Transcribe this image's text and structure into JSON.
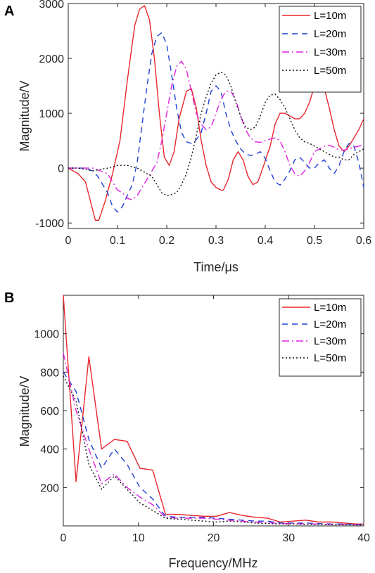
{
  "chart_data": [
    {
      "panel": "A",
      "type": "line",
      "xlabel": "Time/μs",
      "ylabel": "Magnitude/V",
      "xlim": [
        0,
        0.6
      ],
      "ylim": [
        -1100,
        3000
      ],
      "xticks": [
        "0",
        "0.1",
        "0.2",
        "0.3",
        "0.4",
        "0.5",
        "0.6"
      ],
      "yticks": [
        "-1000",
        "0",
        "1000",
        "2000",
        "3000"
      ],
      "legend": "top-right",
      "grid": false,
      "series": [
        {
          "name": "L=10m",
          "color": "#e8262d",
          "dash": "solid",
          "x": [
            0,
            0.02,
            0.035,
            0.045,
            0.055,
            0.062,
            0.075,
            0.09,
            0.105,
            0.12,
            0.135,
            0.145,
            0.155,
            0.165,
            0.175,
            0.185,
            0.195,
            0.205,
            0.215,
            0.225,
            0.24,
            0.25,
            0.26,
            0.27,
            0.28,
            0.29,
            0.3,
            0.31,
            0.315,
            0.325,
            0.335,
            0.345,
            0.355,
            0.365,
            0.375,
            0.385,
            0.395,
            0.41,
            0.42,
            0.43,
            0.44,
            0.45,
            0.46,
            0.47,
            0.48,
            0.49,
            0.5,
            0.51,
            0.52,
            0.53,
            0.54,
            0.55,
            0.56,
            0.57,
            0.58,
            0.59,
            0.6
          ],
          "y": [
            0,
            -100,
            -250,
            -600,
            -950,
            -950,
            -600,
            -100,
            500,
            1600,
            2600,
            2900,
            2960,
            2700,
            2000,
            1000,
            200,
            50,
            300,
            900,
            1400,
            1450,
            1100,
            500,
            50,
            -250,
            -350,
            -400,
            -400,
            -200,
            150,
            300,
            150,
            -150,
            -300,
            -250,
            0,
            400,
            800,
            1000,
            1000,
            950,
            900,
            900,
            1000,
            1200,
            1500,
            1550,
            1450,
            1100,
            700,
            400,
            300,
            400,
            550,
            700,
            900
          ]
        },
        {
          "name": "L=20m",
          "color": "#1f3fd6",
          "dash": "8,6",
          "x": [
            0,
            0.03,
            0.05,
            0.06,
            0.07,
            0.08,
            0.09,
            0.1,
            0.11,
            0.12,
            0.13,
            0.14,
            0.15,
            0.16,
            0.17,
            0.18,
            0.19,
            0.2,
            0.21,
            0.22,
            0.23,
            0.24,
            0.25,
            0.26,
            0.27,
            0.28,
            0.29,
            0.3,
            0.31,
            0.32,
            0.33,
            0.34,
            0.35,
            0.36,
            0.37,
            0.38,
            0.39,
            0.4,
            0.41,
            0.42,
            0.43,
            0.44,
            0.45,
            0.46,
            0.47,
            0.48,
            0.49,
            0.5,
            0.51,
            0.52,
            0.53,
            0.54,
            0.55,
            0.56,
            0.57,
            0.58,
            0.59,
            0.6
          ],
          "y": [
            0,
            0,
            -50,
            -150,
            -300,
            -450,
            -700,
            -800,
            -700,
            -500,
            -300,
            100,
            800,
            1500,
            2100,
            2400,
            2470,
            2250,
            1700,
            1100,
            650,
            480,
            450,
            520,
            650,
            1000,
            1400,
            1500,
            1400,
            1000,
            700,
            500,
            350,
            260,
            230,
            250,
            300,
            180,
            -50,
            -250,
            -310,
            -200,
            -50,
            150,
            200,
            100,
            0,
            0,
            100,
            150,
            0,
            -100,
            50,
            300,
            450,
            400,
            100,
            -350
          ]
        },
        {
          "name": "L=30m",
          "color": "#e020e0",
          "dash": "10,4,2,4",
          "x": [
            0,
            0.05,
            0.08,
            0.09,
            0.1,
            0.11,
            0.12,
            0.13,
            0.14,
            0.15,
            0.16,
            0.17,
            0.18,
            0.19,
            0.2,
            0.21,
            0.22,
            0.23,
            0.24,
            0.25,
            0.26,
            0.27,
            0.28,
            0.29,
            0.3,
            0.31,
            0.32,
            0.33,
            0.34,
            0.35,
            0.36,
            0.37,
            0.38,
            0.39,
            0.4,
            0.41,
            0.42,
            0.43,
            0.44,
            0.45,
            0.46,
            0.47,
            0.48,
            0.49,
            0.5,
            0.51,
            0.52,
            0.53,
            0.54,
            0.55,
            0.56,
            0.57,
            0.58,
            0.59,
            0.6
          ],
          "y": [
            0,
            0,
            -100,
            -250,
            -400,
            -450,
            -550,
            -580,
            -500,
            -350,
            -200,
            -50,
            100,
            500,
            1000,
            1500,
            1850,
            1950,
            1800,
            1400,
            1000,
            800,
            700,
            750,
            1000,
            1250,
            1400,
            1400,
            1250,
            950,
            700,
            550,
            480,
            470,
            500,
            530,
            550,
            500,
            300,
            50,
            -100,
            -150,
            -50,
            100,
            300,
            350,
            400,
            420,
            380,
            330,
            330,
            350,
            380,
            400,
            420
          ]
        },
        {
          "name": "L=50m",
          "color": "#111111",
          "dash": "2,3",
          "x": [
            0,
            0.02,
            0.05,
            0.08,
            0.1,
            0.12,
            0.14,
            0.15,
            0.16,
            0.17,
            0.18,
            0.19,
            0.2,
            0.21,
            0.22,
            0.23,
            0.24,
            0.25,
            0.26,
            0.27,
            0.28,
            0.29,
            0.3,
            0.31,
            0.32,
            0.33,
            0.34,
            0.35,
            0.36,
            0.37,
            0.38,
            0.39,
            0.4,
            0.41,
            0.42,
            0.43,
            0.44,
            0.45,
            0.46,
            0.47,
            0.48,
            0.49,
            0.5,
            0.51,
            0.52,
            0.53,
            0.54,
            0.55,
            0.56,
            0.57,
            0.58,
            0.59,
            0.6
          ],
          "y": [
            0,
            0,
            -50,
            0,
            50,
            50,
            0,
            -50,
            -100,
            -150,
            -300,
            -450,
            -500,
            -480,
            -450,
            -300,
            -100,
            200,
            600,
            1000,
            1300,
            1550,
            1700,
            1750,
            1700,
            1500,
            1200,
            950,
            750,
            700,
            750,
            950,
            1200,
            1330,
            1350,
            1250,
            1100,
            900,
            700,
            550,
            480,
            450,
            400,
            350,
            300,
            250,
            200,
            200,
            150,
            150,
            250,
            300,
            350
          ]
        }
      ]
    },
    {
      "panel": "B",
      "type": "line",
      "xlabel": "Frequency/MHz",
      "ylabel": "Magnitude/V",
      "xlim": [
        0,
        40
      ],
      "ylim": [
        0,
        1200
      ],
      "xticks": [
        "0",
        "10",
        "20",
        "30",
        "40"
      ],
      "yticks": [
        "200",
        "400",
        "600",
        "800",
        "1000"
      ],
      "legend": "top-right",
      "grid": false,
      "series": [
        {
          "name": "L=10m",
          "color": "#e8262d",
          "dash": "solid",
          "x": [
            0,
            1.7,
            3.4,
            5.1,
            6.8,
            8.5,
            10.2,
            11.9,
            13.6,
            15.3,
            17,
            18.7,
            20.4,
            22.1,
            23.8,
            25.5,
            27.2,
            28.9,
            30.6,
            32.3,
            34,
            35.7,
            37.4,
            39.1,
            40
          ],
          "y": [
            1200,
            230,
            880,
            400,
            450,
            440,
            300,
            290,
            60,
            60,
            55,
            50,
            50,
            70,
            55,
            45,
            40,
            20,
            25,
            30,
            20,
            20,
            15,
            10,
            10
          ]
        },
        {
          "name": "L=20m",
          "color": "#1f3fd6",
          "dash": "8,6",
          "x": [
            0,
            1.7,
            3.4,
            5.1,
            6.8,
            8.5,
            10.2,
            11.9,
            13.6,
            15.3,
            17,
            18.7,
            20.4,
            22.1,
            23.8,
            25.5,
            27.2,
            28.9,
            30.6,
            32.3,
            34,
            35.7,
            37.4,
            39.1,
            40
          ],
          "y": [
            800,
            700,
            450,
            300,
            400,
            320,
            200,
            140,
            50,
            45,
            45,
            45,
            40,
            35,
            30,
            25,
            25,
            15,
            15,
            15,
            12,
            10,
            10,
            8,
            8
          ]
        },
        {
          "name": "L=30m",
          "color": "#e020e0",
          "dash": "10,4,2,4",
          "x": [
            0,
            1.7,
            3.4,
            5.1,
            6.8,
            8.5,
            10.2,
            11.9,
            13.6,
            15.3,
            17,
            18.7,
            20.4,
            22.1,
            23.8,
            25.5,
            27.2,
            28.9,
            30.6,
            32.3,
            34,
            35.7,
            37.4,
            39.1,
            40
          ],
          "y": [
            900,
            600,
            400,
            220,
            270,
            200,
            150,
            110,
            45,
            40,
            40,
            40,
            35,
            30,
            25,
            20,
            18,
            12,
            12,
            10,
            10,
            8,
            8,
            6,
            6
          ]
        },
        {
          "name": "L=50m",
          "color": "#111111",
          "dash": "2,3",
          "x": [
            0,
            1.7,
            3.4,
            5.1,
            6.8,
            8.5,
            10.2,
            11.9,
            13.6,
            15.3,
            17,
            18.7,
            20.4,
            22.1,
            23.8,
            25.5,
            27.2,
            28.9,
            30.6,
            32.3,
            34,
            35.7,
            37.4,
            39.1,
            40
          ],
          "y": [
            780,
            650,
            320,
            190,
            260,
            190,
            120,
            80,
            40,
            35,
            30,
            25,
            20,
            25,
            20,
            15,
            12,
            10,
            10,
            8,
            8,
            6,
            6,
            5,
            5
          ]
        }
      ]
    }
  ]
}
